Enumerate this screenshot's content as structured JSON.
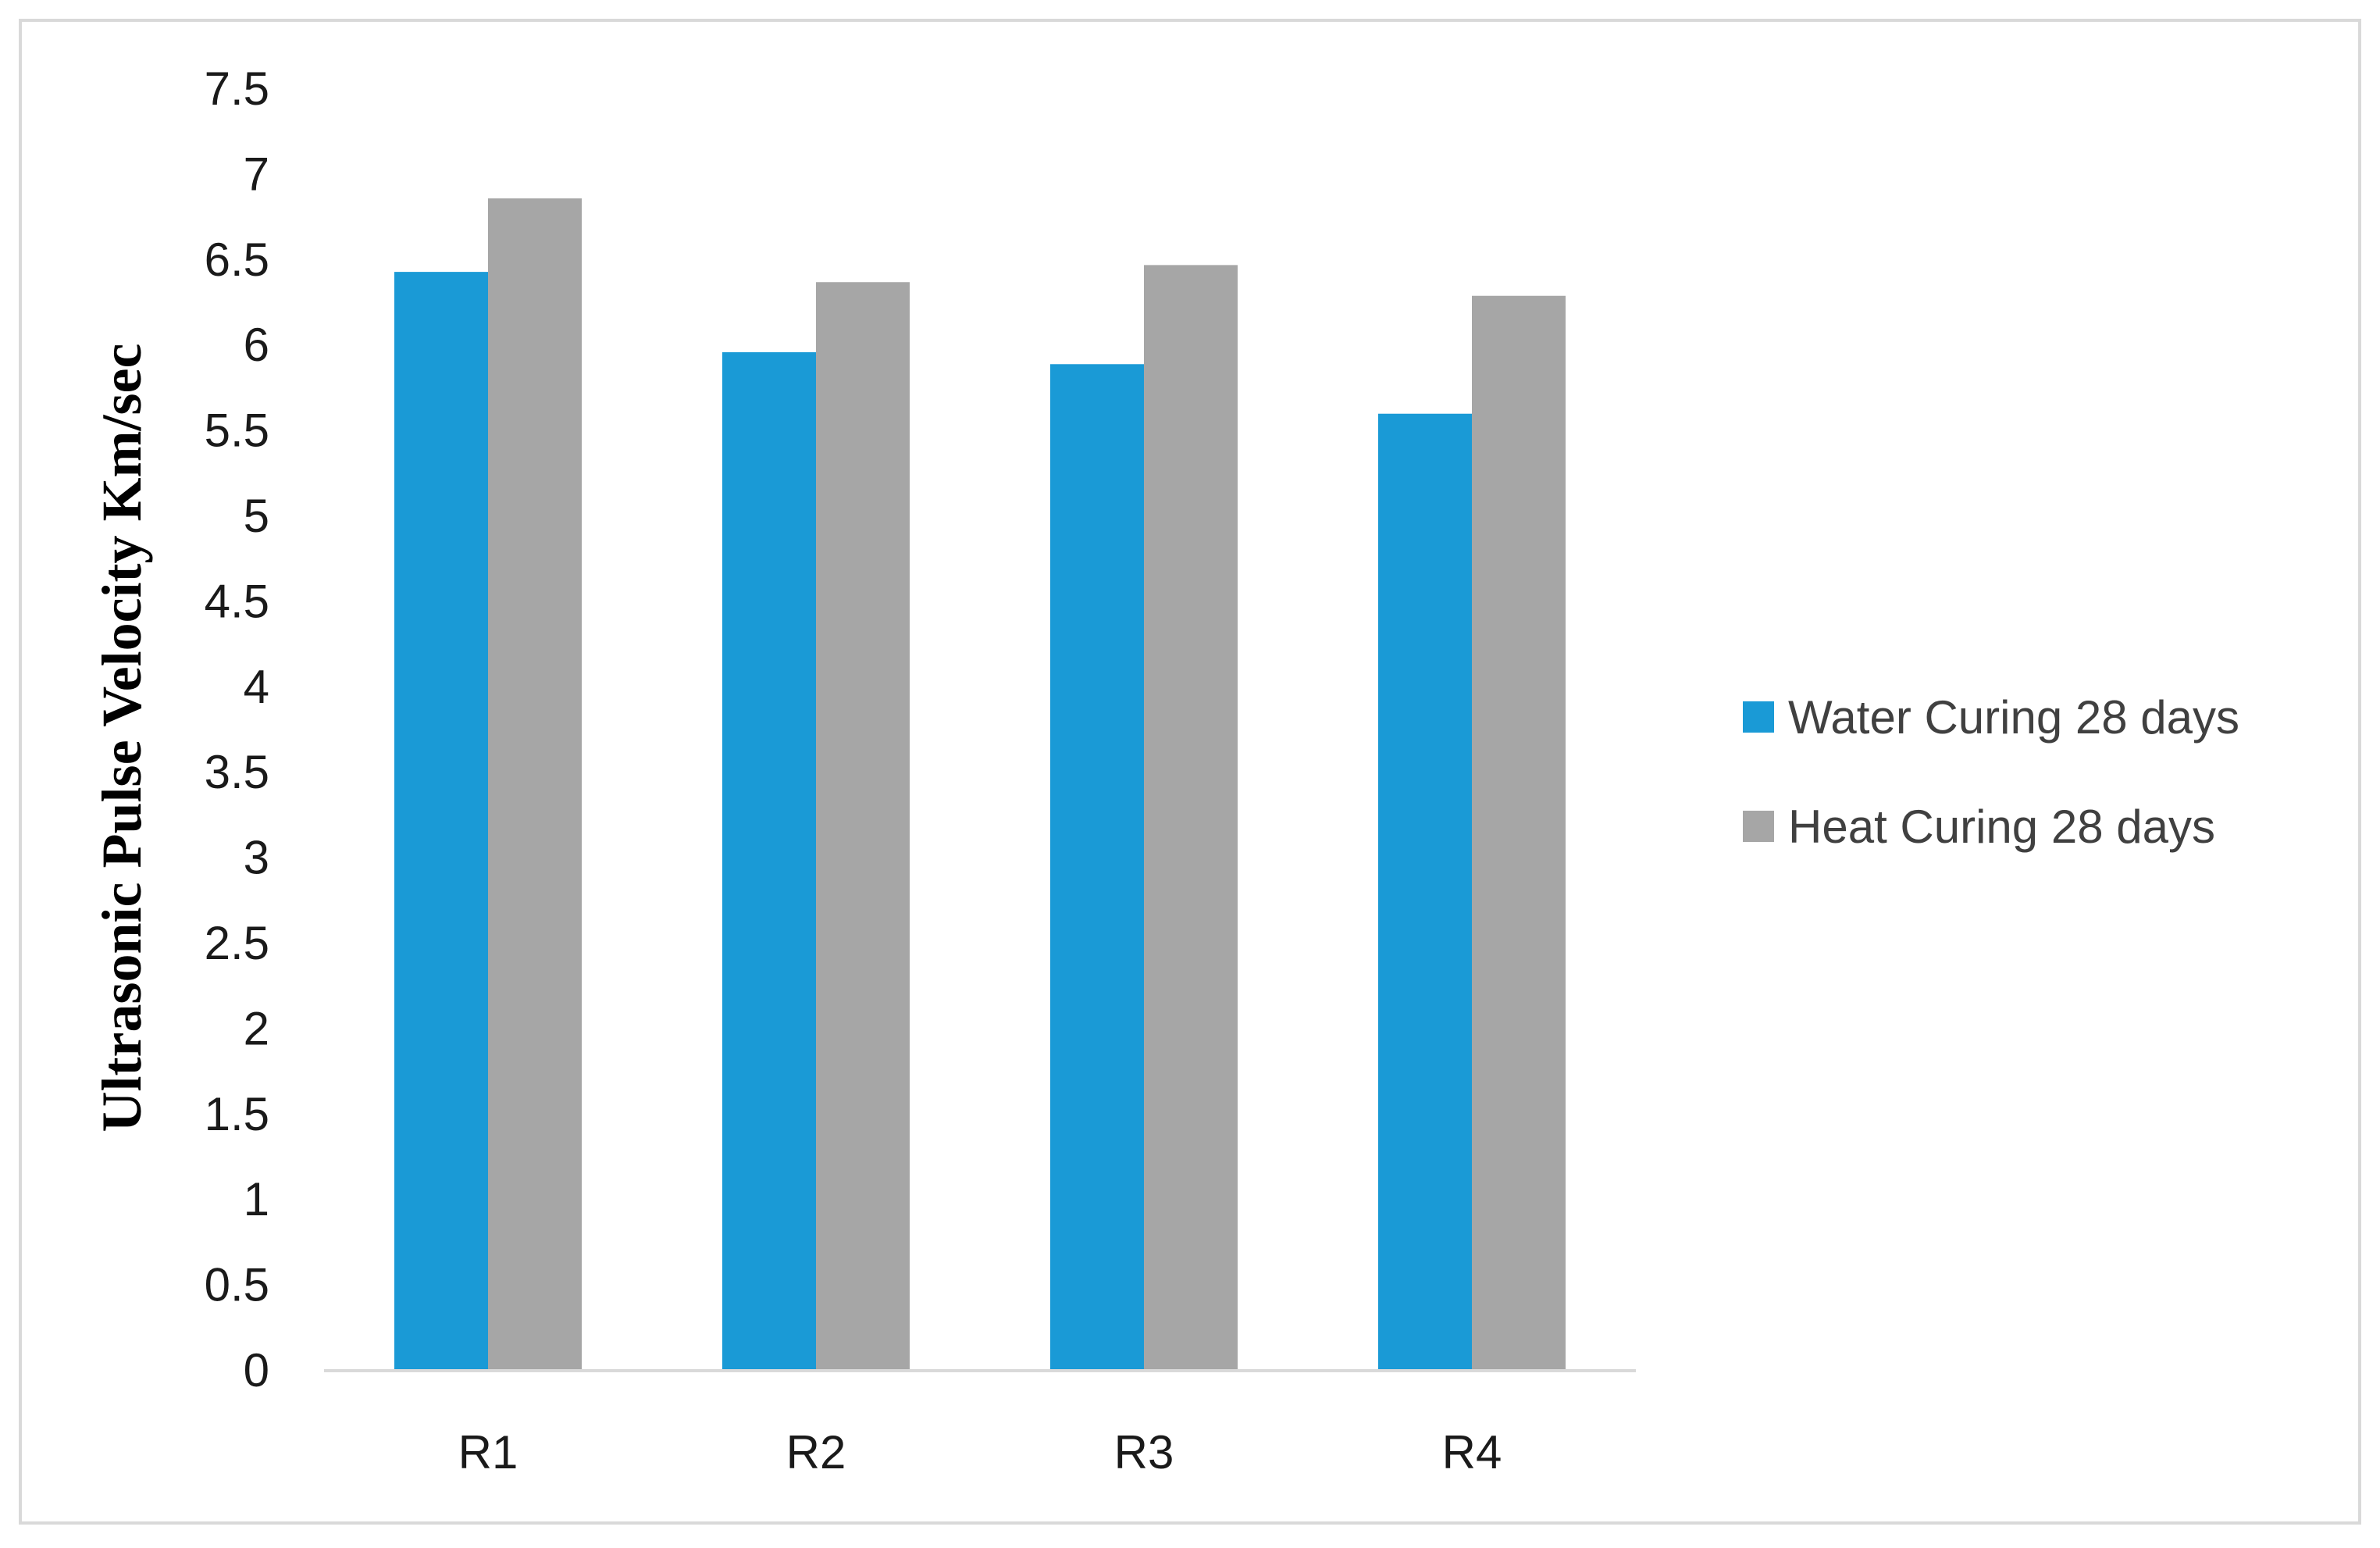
{
  "chart_data": {
    "type": "bar",
    "title": "",
    "xlabel": "",
    "ylabel": "Ultrasonic Pulse Velocity Km/sec",
    "categories": [
      "R1",
      "R2",
      "R3",
      "R4"
    ],
    "ylim": [
      0,
      7.5
    ],
    "yticks": [
      "0",
      "0.5",
      "1",
      "1.5",
      "2",
      "2.5",
      "3",
      "3.5",
      "4",
      "4.5",
      "5",
      "5.5",
      "6",
      "6.5",
      "7",
      "7.5"
    ],
    "grid": false,
    "legend_position": "right",
    "series": [
      {
        "name": "Water Curing 28 days",
        "color": "#1a9ad6",
        "values": [
          6.43,
          5.96,
          5.89,
          5.6
        ]
      },
      {
        "name": "Heat Curing 28 days",
        "color": "#a6a6a6",
        "values": [
          6.86,
          6.37,
          6.47,
          6.29
        ]
      }
    ]
  }
}
